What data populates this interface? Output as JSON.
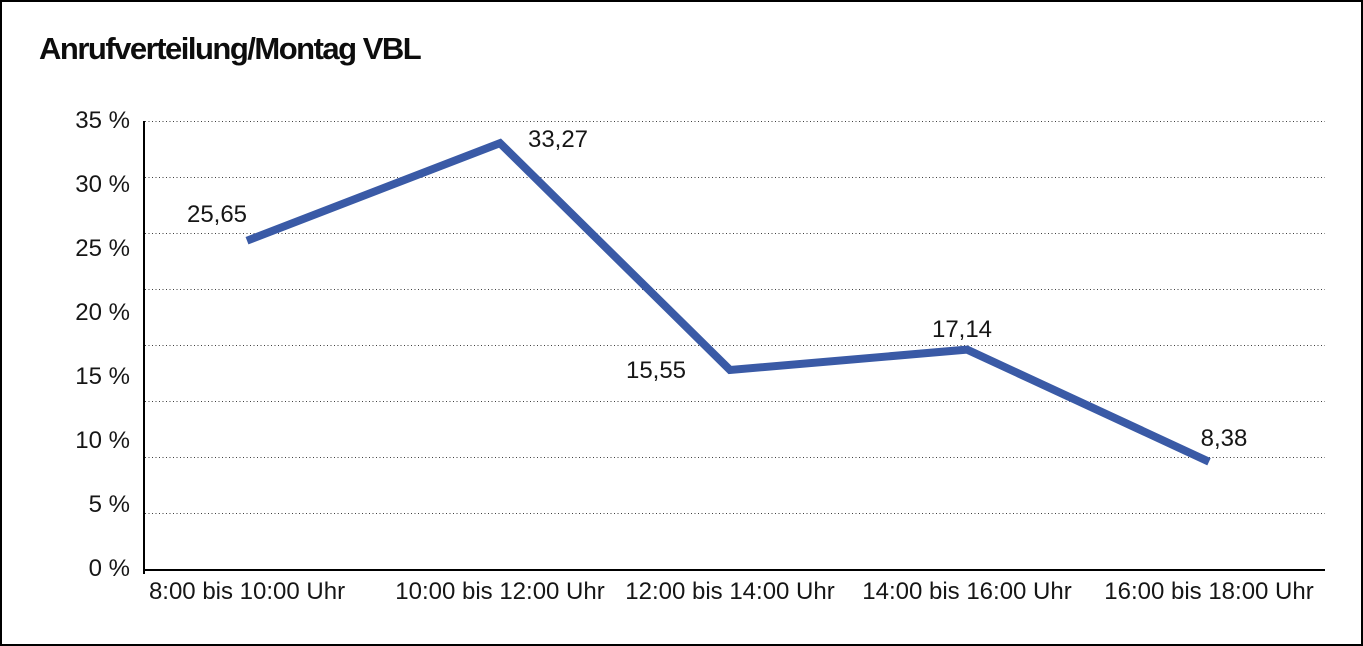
{
  "title": "Anrufverteilung/Montag VBL",
  "chart_data": {
    "type": "line",
    "title": "Anrufverteilung/Montag VBL",
    "categories": [
      "8:00 bis 10:00 Uhr",
      "10:00 bis 12:00 Uhr",
      "12:00 bis 14:00 Uhr",
      "14:00 bis 16:00 Uhr",
      "16:00 bis 18:00 Uhr"
    ],
    "series": [
      {
        "values": [
          25.65,
          33.27,
          15.55,
          17.14,
          8.38
        ]
      }
    ],
    "point_labels": [
      "25,65",
      "33,27",
      "15,55",
      "17,14",
      "8,38"
    ],
    "y_axis": {
      "min": 0,
      "max": 35,
      "unit": "%",
      "tick_labels": [
        "35 %",
        "30 %",
        "25 %",
        "20 %",
        "15 %",
        "10 %",
        "5 %",
        "0 %"
      ],
      "gridline_divisions": 8
    },
    "xlabel": "",
    "ylabel": "",
    "legend": "none",
    "grid": "dotted horizontal",
    "line_color": "#3A5AA6",
    "text_color": "#161616",
    "axis_color": "#000000"
  }
}
